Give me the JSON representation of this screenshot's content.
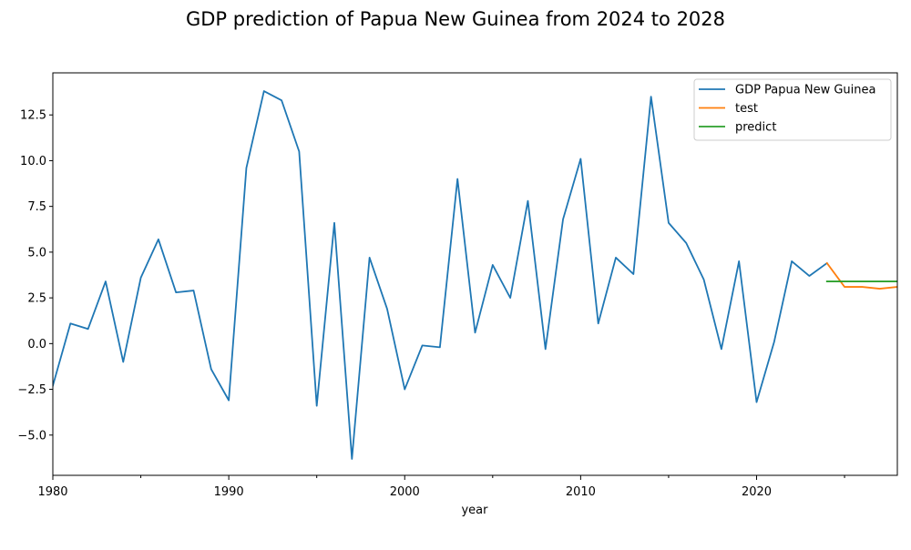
{
  "chart_data": {
    "type": "line",
    "title": "GDP prediction of Papua New Guinea from 2024 to 2028",
    "xlabel": "year",
    "ylabel": "",
    "xlim": [
      1980,
      2028
    ],
    "ylim": [
      -7.2,
      14.8
    ],
    "x_ticks": [
      1980,
      1990,
      2000,
      2010,
      2020
    ],
    "x_tick_labels": [
      "1980",
      "1990",
      "2000",
      "2010",
      "2020"
    ],
    "x_minor_ticks": [
      1985,
      1995,
      2005,
      2015,
      2025
    ],
    "y_ticks": [
      -5.0,
      -2.5,
      0.0,
      2.5,
      5.0,
      7.5,
      10.0,
      12.5
    ],
    "y_tick_labels": [
      "−5.0",
      "−2.5",
      "0.0",
      "2.5",
      "5.0",
      "7.5",
      "10.0",
      "12.5"
    ],
    "grid": false,
    "legend_position": "top-right",
    "series": [
      {
        "name": "GDP Papua New Guinea",
        "color": "#1f77b4",
        "x": [
          1980,
          1981,
          1982,
          1983,
          1984,
          1985,
          1986,
          1987,
          1988,
          1989,
          1990,
          1991,
          1992,
          1993,
          1994,
          1995,
          1996,
          1997,
          1998,
          1999,
          2000,
          2001,
          2002,
          2003,
          2004,
          2005,
          2006,
          2007,
          2008,
          2009,
          2010,
          2011,
          2012,
          2013,
          2014,
          2015,
          2016,
          2017,
          2018,
          2019,
          2020,
          2021,
          2022,
          2023,
          2024
        ],
        "values": [
          -2.3,
          1.1,
          0.8,
          3.4,
          -1.0,
          3.6,
          5.7,
          2.8,
          2.9,
          -1.4,
          -3.1,
          9.6,
          13.8,
          13.3,
          10.5,
          -3.4,
          6.6,
          -6.3,
          4.7,
          1.9,
          -2.5,
          -0.1,
          -0.2,
          9.0,
          0.6,
          4.3,
          2.5,
          7.8,
          -0.3,
          6.8,
          10.1,
          1.1,
          4.7,
          3.8,
          13.5,
          6.6,
          5.5,
          3.5,
          -0.3,
          4.5,
          -3.2,
          0.1,
          4.5,
          3.7,
          4.4
        ]
      },
      {
        "name": "test",
        "color": "#ff7f0e",
        "x": [
          2024,
          2025,
          2026,
          2027,
          2028
        ],
        "values": [
          4.4,
          3.1,
          3.1,
          3.0,
          3.1
        ]
      },
      {
        "name": "predict",
        "color": "#2ca02c",
        "x": [
          2024,
          2025,
          2026,
          2027,
          2028
        ],
        "values": [
          3.4,
          3.4,
          3.4,
          3.4,
          3.4
        ]
      }
    ]
  }
}
